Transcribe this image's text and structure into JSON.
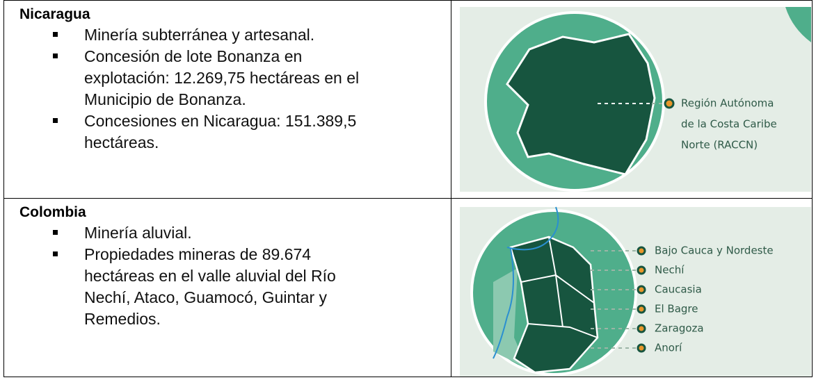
{
  "rows": [
    {
      "country": "Nicaragua",
      "bullets": [
        [
          "Minería subterránea y artesanal."
        ],
        [
          "Concesión de lote Bonanza en",
          "explotación: 12.269,75 hectáreas en el",
          "Municipio de Bonanza."
        ],
        [
          "Concesiones en Nicaragua: 151.389,5",
          "hectáreas."
        ]
      ],
      "map_labels": [
        "Región Autónoma",
        "de la Costa Caribe",
        "Norte (RACCN)"
      ]
    },
    {
      "country": "Colombia",
      "bullets": [
        [
          "Minería aluvial."
        ],
        [
          "Propiedades mineras de 89.674",
          "hectáreas en el valle aluvial del Río",
          "Nechí, Ataco, Guamocó, Guintar y",
          "Remedios."
        ]
      ],
      "map_labels": [
        "Bajo Cauca y Nordeste",
        "Nechí",
        "Caucasia",
        "El Bagre",
        "Zaragoza",
        "Anorí"
      ]
    }
  ]
}
